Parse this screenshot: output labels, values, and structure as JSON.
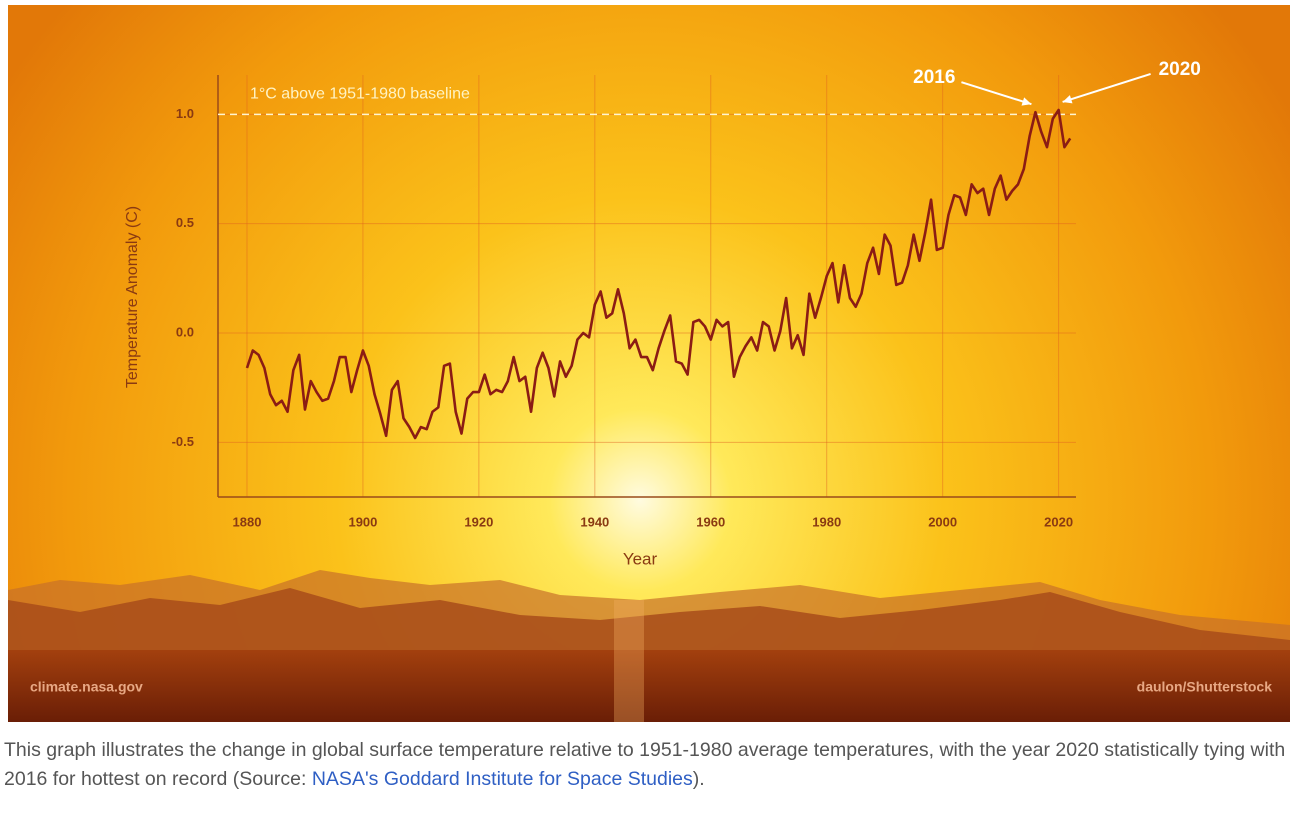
{
  "chart_data": {
    "type": "line",
    "xlabel": "Year",
    "ylabel": "Temperature Anomaly (C)",
    "x": [
      1880,
      1881,
      1882,
      1883,
      1884,
      1885,
      1886,
      1887,
      1888,
      1889,
      1890,
      1891,
      1892,
      1893,
      1894,
      1895,
      1896,
      1897,
      1898,
      1899,
      1900,
      1901,
      1902,
      1903,
      1904,
      1905,
      1906,
      1907,
      1908,
      1909,
      1910,
      1911,
      1912,
      1913,
      1914,
      1915,
      1916,
      1917,
      1918,
      1919,
      1920,
      1921,
      1922,
      1923,
      1924,
      1925,
      1926,
      1927,
      1928,
      1929,
      1930,
      1931,
      1932,
      1933,
      1934,
      1935,
      1936,
      1937,
      1938,
      1939,
      1940,
      1941,
      1942,
      1943,
      1944,
      1945,
      1946,
      1947,
      1948,
      1949,
      1950,
      1951,
      1952,
      1953,
      1954,
      1955,
      1956,
      1957,
      1958,
      1959,
      1960,
      1961,
      1962,
      1963,
      1964,
      1965,
      1966,
      1967,
      1968,
      1969,
      1970,
      1971,
      1972,
      1973,
      1974,
      1975,
      1976,
      1977,
      1978,
      1979,
      1980,
      1981,
      1982,
      1983,
      1984,
      1985,
      1986,
      1987,
      1988,
      1989,
      1990,
      1991,
      1992,
      1993,
      1994,
      1995,
      1996,
      1997,
      1998,
      1999,
      2000,
      2001,
      2002,
      2003,
      2004,
      2005,
      2006,
      2007,
      2008,
      2009,
      2010,
      2011,
      2012,
      2013,
      2014,
      2015,
      2016,
      2017,
      2018,
      2019,
      2020,
      2021,
      2022
    ],
    "values": [
      -0.16,
      -0.08,
      -0.1,
      -0.16,
      -0.28,
      -0.33,
      -0.31,
      -0.36,
      -0.17,
      -0.1,
      -0.35,
      -0.22,
      -0.27,
      -0.31,
      -0.3,
      -0.22,
      -0.11,
      -0.11,
      -0.27,
      -0.17,
      -0.08,
      -0.15,
      -0.28,
      -0.37,
      -0.47,
      -0.26,
      -0.22,
      -0.39,
      -0.43,
      -0.48,
      -0.43,
      -0.44,
      -0.36,
      -0.34,
      -0.15,
      -0.14,
      -0.36,
      -0.46,
      -0.3,
      -0.27,
      -0.27,
      -0.19,
      -0.28,
      -0.26,
      -0.27,
      -0.22,
      -0.11,
      -0.22,
      -0.2,
      -0.36,
      -0.16,
      -0.09,
      -0.16,
      -0.29,
      -0.13,
      -0.2,
      -0.15,
      -0.03,
      0.0,
      -0.02,
      0.13,
      0.19,
      0.07,
      0.09,
      0.2,
      0.09,
      -0.07,
      -0.03,
      -0.11,
      -0.11,
      -0.17,
      -0.07,
      0.01,
      0.08,
      -0.13,
      -0.14,
      -0.19,
      0.05,
      0.06,
      0.03,
      -0.03,
      0.06,
      0.03,
      0.05,
      -0.2,
      -0.11,
      -0.06,
      -0.02,
      -0.08,
      0.05,
      0.03,
      -0.08,
      0.01,
      0.16,
      -0.07,
      -0.01,
      -0.1,
      0.18,
      0.07,
      0.16,
      0.26,
      0.32,
      0.14,
      0.31,
      0.16,
      0.12,
      0.18,
      0.32,
      0.39,
      0.27,
      0.45,
      0.4,
      0.22,
      0.23,
      0.31,
      0.45,
      0.33,
      0.46,
      0.61,
      0.38,
      0.39,
      0.54,
      0.63,
      0.62,
      0.54,
      0.68,
      0.64,
      0.66,
      0.54,
      0.66,
      0.72,
      0.61,
      0.65,
      0.68,
      0.75,
      0.9,
      1.01,
      0.92,
      0.85,
      0.98,
      1.02,
      0.85,
      0.89
    ],
    "color": "#8b1c14",
    "xlim": [
      1875,
      2023
    ],
    "ylim": [
      -0.75,
      1.18
    ],
    "xticks": [
      1880,
      1900,
      1920,
      1940,
      1960,
      1980,
      2000,
      2020
    ],
    "yticks": [
      {
        "value": 1,
        "label": "1.0"
      },
      0.5,
      {
        "value": 0,
        "label": "0.0"
      },
      -0.5
    ],
    "grid": true,
    "reference_line": {
      "value": 1,
      "label": "1°C above 1951-1980 baseline"
    },
    "annotations": [
      {
        "text": "2016",
        "x": 2016
      },
      {
        "text": "2020",
        "x": 2020
      }
    ],
    "credits": [
      "climate.nasa.gov",
      "daulon/Shutterstock"
    ]
  },
  "caption": {
    "text": "This graph illustrates the change in global surface temperature relative to 1951-1980 average temperatures, with the year 2020 statistically tying with 2016 for hottest on record (Source: ",
    "link": "NASA's Goddard Institute for Space Studies",
    "end": ")."
  }
}
